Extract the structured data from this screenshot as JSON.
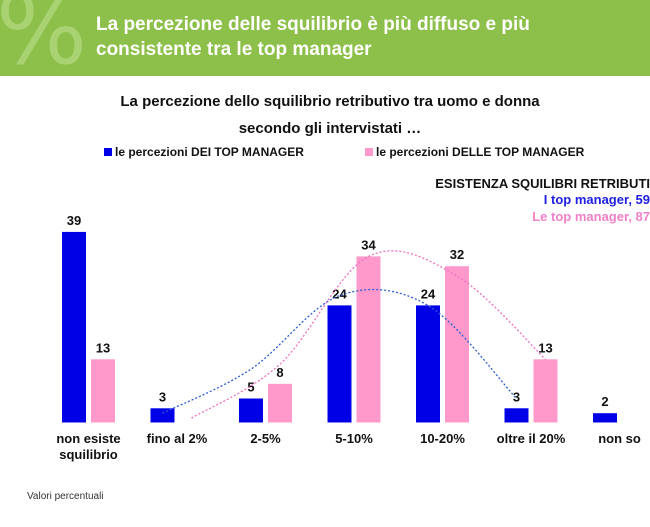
{
  "header": {
    "title": "La percezione delle squilibrio è più diffuso e più consistente tra le top manager",
    "symbol": "%"
  },
  "chart_data": {
    "type": "bar",
    "title_line1": "La percezione dello squilibrio retributivo tra uomo e donna",
    "title_line2": "secondo gli intervistati …",
    "categories": [
      "non esiste\nsquilibrio",
      "fino al 2%",
      "2-5%",
      "5-10%",
      "10-20%",
      "oltre il 20%",
      "non so"
    ],
    "series": [
      {
        "name": "le percezioni DEI TOP MANAGER",
        "color": "#0000e6",
        "values": [
          39,
          3,
          5,
          24,
          24,
          3,
          2
        ]
      },
      {
        "name": "le percezioni DELLE TOP MANAGER",
        "color": "#ff99cc",
        "values": [
          13,
          null,
          8,
          34,
          32,
          13,
          null
        ]
      }
    ],
    "ylim": [
      0,
      40
    ],
    "xlabel": "",
    "ylabel": "",
    "trendlines": "dotted curves for each series"
  },
  "annotation": {
    "heading": "ESISTENZA SQUILIBRI RETRIBUTI",
    "line_men": "I top manager, 59",
    "line_women": "Le top manager, 87"
  },
  "footer": {
    "note": "Valori percentuali"
  }
}
